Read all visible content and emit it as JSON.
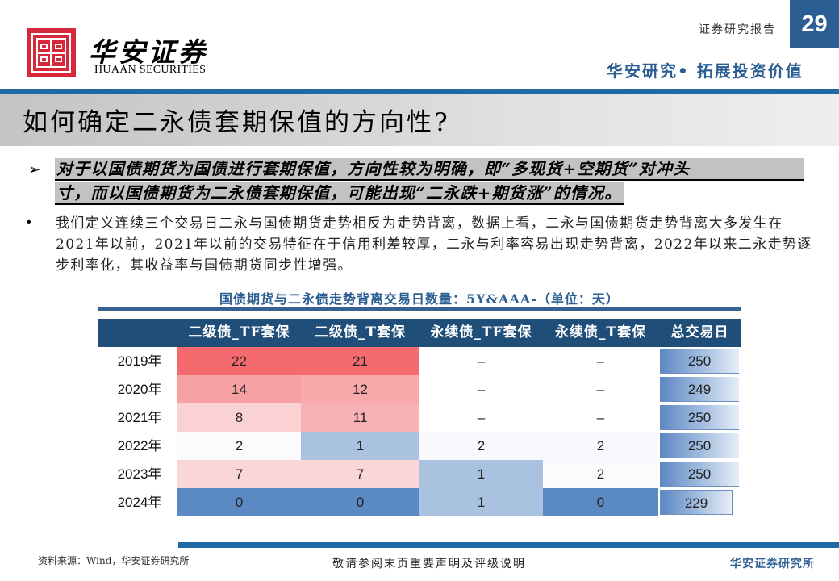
{
  "header": {
    "logo_cn": "华安证券",
    "logo_en": "HUAAN SECURITIES",
    "report_type": "证券研究报告",
    "page_number": "29",
    "slogan": "华安研究• 拓展投资价值"
  },
  "title": "如何确定二永债套期保值的方向性?",
  "highlight": {
    "line1": "对于以国债期货为国债进行套期保值，方向性较为明确，即“多现货+空期货”对冲头",
    "line2": "寸，而以国债期货为二永债套期保值，可能出现“二永跌+期货涨”的情况。"
  },
  "paragraph": "我们定义连续三个交易日二永与国债期货走势相反为走势背离，数据上看，二永与国债期货走势背离大多发生在2021年以前，2021年以前的交易特征在于信用利差较厚，二永与利率容易出现走势背离，2022年以来二永走势逐步利率化，其收益率与国债期货同步性增强。",
  "table": {
    "title": "国债期货与二永债走势背离交易日数量：5Y&AAA-（单位：天）",
    "headers": [
      "二级债_TF套保",
      "二级债_T套保",
      "永续债_TF套保",
      "永续债_T套保",
      "总交易日"
    ],
    "rows": [
      {
        "year": "2019年",
        "c1": "22",
        "c2": "21",
        "c3": "–",
        "c4": "–",
        "total": "250"
      },
      {
        "year": "2020年",
        "c1": "14",
        "c2": "12",
        "c3": "–",
        "c4": "–",
        "total": "249"
      },
      {
        "year": "2021年",
        "c1": "8",
        "c2": "11",
        "c3": "–",
        "c4": "–",
        "total": "250"
      },
      {
        "year": "2022年",
        "c1": "2",
        "c2": "1",
        "c3": "2",
        "c4": "2",
        "total": "250"
      },
      {
        "year": "2023年",
        "c1": "7",
        "c2": "7",
        "c3": "1",
        "c4": "2",
        "total": "250"
      },
      {
        "year": "2024年",
        "c1": "0",
        "c2": "0",
        "c3": "1",
        "c4": "0",
        "total": "229"
      }
    ],
    "cell_colors": [
      [
        "#f56a6e",
        "#f56a6e",
        "#ffffff",
        "#ffffff"
      ],
      [
        "#f7a1a4",
        "#f7a9ac",
        "#ffffff",
        "#ffffff"
      ],
      [
        "#fbd2d3",
        "#f8b1b4",
        "#ffffff",
        "#ffffff"
      ],
      [
        "#fbfbfe",
        "#a8c2e0",
        "#f8f9fd",
        "#f8f9fd"
      ],
      [
        "#fbd6d7",
        "#fbd6d7",
        "#a8c2e0",
        "#fbfbfe"
      ],
      [
        "#5b89c4",
        "#5b89c4",
        "#a8c2e0",
        "#5b89c4"
      ]
    ]
  },
  "chart_data": {
    "type": "table",
    "title": "国债期货与二永债走势背离交易日数量：5Y&AAA-（单位：天）",
    "categories": [
      "2019年",
      "2020年",
      "2021年",
      "2022年",
      "2023年",
      "2024年"
    ],
    "series": [
      {
        "name": "二级债_TF套保",
        "values": [
          22,
          14,
          8,
          2,
          7,
          0
        ]
      },
      {
        "name": "二级债_T套保",
        "values": [
          21,
          12,
          11,
          1,
          7,
          0
        ]
      },
      {
        "name": "永续债_TF套保",
        "values": [
          null,
          null,
          null,
          2,
          1,
          1
        ]
      },
      {
        "name": "永续债_T套保",
        "values": [
          null,
          null,
          null,
          2,
          2,
          0
        ]
      },
      {
        "name": "总交易日",
        "values": [
          250,
          249,
          250,
          250,
          250,
          229
        ]
      }
    ],
    "unit": "天"
  },
  "footer": {
    "source": "资料来源：Wind，华安证券研究所",
    "disclaimer": "敬请参阅末页重要声明及评级说明",
    "brand": "华安证券研究所"
  },
  "colors": {
    "brand_red": "#d7283c",
    "brand_blue": "#2c5e93",
    "rule_blue": "#1f6aa5",
    "table_header": "#1f4e79"
  }
}
